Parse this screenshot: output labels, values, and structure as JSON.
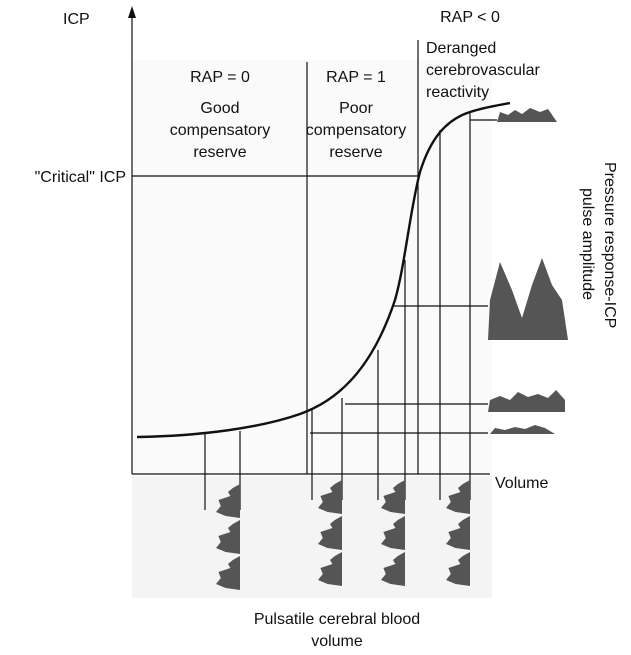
{
  "axes": {
    "y_label": "ICP",
    "x_label": "Volume"
  },
  "critical_label": "\"Critical\" ICP",
  "zones": [
    {
      "rap": "RAP = 0",
      "lines": [
        "Good",
        "compensatory",
        "reserve"
      ]
    },
    {
      "rap": "RAP = 1",
      "lines": [
        "Poor",
        "compensatory",
        "reserve"
      ]
    },
    {
      "rap": "RAP < 0",
      "lines": [
        "Deranged",
        "cerebrovascular",
        "reactivity"
      ]
    }
  ],
  "right_label": [
    "Pressure response-ICP",
    "pulse amplitude"
  ],
  "bottom_label": [
    "Pulsatile cerebral blood",
    "volume"
  ]
}
